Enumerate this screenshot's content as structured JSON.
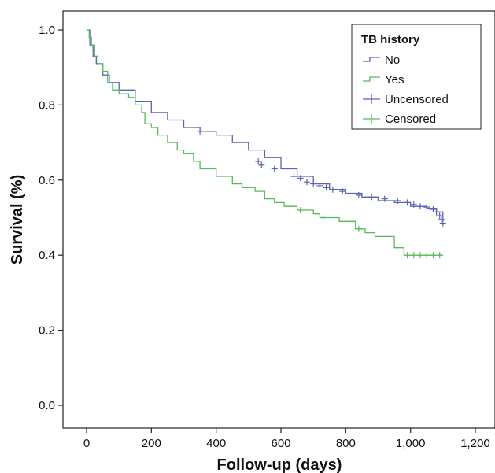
{
  "chart_data": {
    "type": "line",
    "xlabel": "Follow-up (days)",
    "ylabel": "Survival (%)",
    "xlim": [
      0,
      1200
    ],
    "ylim": [
      0.0,
      1.0
    ],
    "x_ticks": [
      0,
      200,
      400,
      600,
      800,
      1000,
      1200
    ],
    "x_tick_labels": [
      "0",
      "200",
      "400",
      "600",
      "800",
      "1,000",
      "1,200"
    ],
    "y_ticks": [
      0.0,
      0.2,
      0.4,
      0.6,
      0.8,
      1.0
    ],
    "y_tick_labels": [
      "0.0",
      "0.2",
      "0.4",
      "0.6",
      "0.8",
      "1.0"
    ],
    "grid": false,
    "legend": {
      "title": "TB history",
      "placement": "top-right",
      "entries": [
        {
          "label": "No",
          "kind": "line",
          "color": "#5a64b4"
        },
        {
          "label": "Yes",
          "kind": "line",
          "color": "#5ab85a"
        },
        {
          "label": "Uncensored",
          "kind": "marker",
          "color": "#5a64b4"
        },
        {
          "label": "Censored",
          "kind": "marker",
          "color": "#5ab85a"
        }
      ]
    },
    "series": [
      {
        "name": "No",
        "color": "#5a64b4",
        "step": true,
        "x": [
          0,
          10,
          20,
          30,
          50,
          70,
          100,
          150,
          200,
          250,
          300,
          350,
          400,
          450,
          500,
          550,
          600,
          650,
          700,
          750,
          800,
          850,
          900,
          950,
          1000,
          1050,
          1080,
          1100
        ],
        "y": [
          1.0,
          0.96,
          0.93,
          0.91,
          0.88,
          0.86,
          0.84,
          0.81,
          0.78,
          0.76,
          0.74,
          0.73,
          0.72,
          0.7,
          0.68,
          0.66,
          0.63,
          0.61,
          0.59,
          0.575,
          0.565,
          0.555,
          0.545,
          0.54,
          0.53,
          0.525,
          0.515,
          0.49
        ],
        "censor_x": [
          350,
          530,
          540,
          580,
          640,
          660,
          680,
          700,
          720,
          740,
          760,
          790,
          840,
          880,
          920,
          960,
          990,
          1010,
          1030,
          1050,
          1060,
          1070,
          1080,
          1090,
          1095,
          1100
        ],
        "censor_y": [
          0.73,
          0.65,
          0.64,
          0.63,
          0.61,
          0.605,
          0.595,
          0.59,
          0.585,
          0.58,
          0.575,
          0.57,
          0.56,
          0.555,
          0.55,
          0.545,
          0.54,
          0.535,
          0.53,
          0.528,
          0.525,
          0.522,
          0.515,
          0.505,
          0.495,
          0.485
        ]
      },
      {
        "name": "Yes",
        "color": "#5ab85a",
        "step": true,
        "x": [
          0,
          8,
          15,
          25,
          35,
          50,
          65,
          80,
          100,
          130,
          150,
          170,
          180,
          200,
          220,
          250,
          280,
          300,
          330,
          350,
          400,
          450,
          480,
          520,
          550,
          580,
          610,
          650,
          700,
          720,
          780,
          830,
          860,
          890,
          950,
          980,
          1000,
          1100
        ],
        "y": [
          1.0,
          0.98,
          0.96,
          0.93,
          0.91,
          0.89,
          0.86,
          0.84,
          0.83,
          0.82,
          0.8,
          0.78,
          0.75,
          0.74,
          0.72,
          0.7,
          0.68,
          0.67,
          0.65,
          0.63,
          0.61,
          0.59,
          0.58,
          0.57,
          0.55,
          0.54,
          0.53,
          0.52,
          0.51,
          0.5,
          0.49,
          0.47,
          0.46,
          0.45,
          0.42,
          0.4,
          0.4,
          0.4
        ],
        "censor_x": [
          660,
          730,
          840,
          990,
          1010,
          1030,
          1050,
          1070,
          1090
        ],
        "censor_y": [
          0.52,
          0.5,
          0.47,
          0.4,
          0.4,
          0.4,
          0.4,
          0.4,
          0.4
        ]
      }
    ]
  }
}
